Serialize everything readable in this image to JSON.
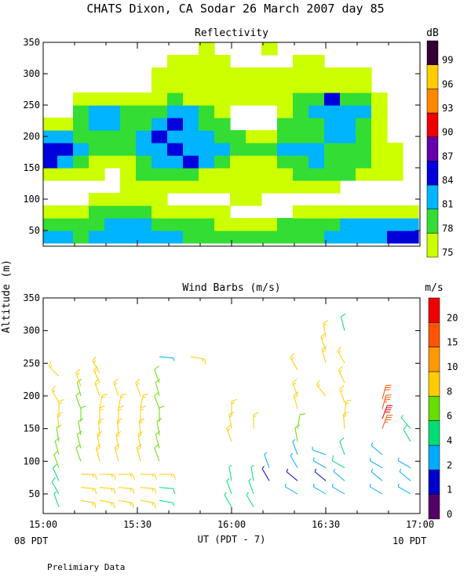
{
  "main_title": "CHATS Dixon, CA   Sodar   26 March 2007   day  85",
  "y_axis_label": "Altitude (m)",
  "x_axis_label": "UT  (PDT - 7)",
  "x_left_note": "08 PDT",
  "x_right_note": "10 PDT",
  "footer": "Prelimiary Data",
  "chart_data": [
    {
      "type": "heatmap",
      "title": "Reflectivity",
      "x_ticks": [
        "15:00",
        "15:30",
        "16:00",
        "16:30",
        "17:00"
      ],
      "y_ticks": [
        50,
        100,
        150,
        200,
        250,
        300,
        350
      ],
      "ylim": [
        25,
        350
      ],
      "colorbar": {
        "unit": "dB",
        "levels": [
          75,
          78,
          81,
          84,
          87,
          90,
          93,
          96,
          99
        ],
        "colors": [
          "#ccff00",
          "#33dd33",
          "#00b4ff",
          "#0000dd",
          "#6600aa",
          "#ee0000",
          "#ff8800",
          "#ffcc00",
          "#330033"
        ]
      },
      "x_grid_minutes": [
        2,
        7,
        12,
        17,
        22,
        27,
        32,
        37,
        42,
        47,
        52,
        57,
        62,
        67,
        72,
        77,
        82,
        87,
        92,
        97,
        102,
        107,
        112,
        117
      ],
      "altitudes_m": [
        40,
        60,
        80,
        100,
        120,
        140,
        160,
        180,
        200,
        220,
        240,
        260,
        280,
        300,
        320,
        340
      ],
      "grid_db": [
        [
          81,
          81,
          78,
          81,
          81,
          81,
          81,
          81,
          81,
          78,
          78,
          78,
          78,
          78,
          78,
          78,
          78,
          78,
          81,
          81,
          81,
          81,
          84,
          84
        ],
        [
          78,
          78,
          78,
          78,
          81,
          81,
          81,
          78,
          78,
          78,
          78,
          75,
          75,
          75,
          75,
          78,
          78,
          78,
          78,
          81,
          81,
          81,
          81,
          81
        ],
        [
          75,
          75,
          75,
          78,
          78,
          78,
          78,
          75,
          75,
          75,
          75,
          75,
          72,
          72,
          72,
          72,
          75,
          75,
          75,
          75,
          75,
          75,
          75,
          75
        ],
        [
          72,
          72,
          72,
          75,
          75,
          75,
          75,
          75,
          72,
          72,
          72,
          72,
          75,
          75,
          72,
          72,
          72,
          72,
          72,
          72,
          72,
          72,
          72,
          72
        ],
        [
          72,
          72,
          72,
          72,
          72,
          75,
          75,
          75,
          75,
          75,
          75,
          75,
          75,
          75,
          75,
          75,
          75,
          75,
          75,
          72,
          72,
          72,
          72,
          72
        ],
        [
          75,
          75,
          75,
          75,
          72,
          75,
          78,
          78,
          78,
          78,
          75,
          75,
          75,
          75,
          75,
          75,
          78,
          78,
          78,
          78,
          75,
          75,
          75,
          72
        ],
        [
          84,
          81,
          78,
          75,
          75,
          75,
          78,
          81,
          81,
          84,
          81,
          78,
          75,
          75,
          75,
          78,
          78,
          81,
          78,
          78,
          78,
          75,
          75,
          72
        ],
        [
          84,
          84,
          81,
          78,
          78,
          78,
          81,
          81,
          84,
          81,
          81,
          81,
          78,
          78,
          78,
          81,
          81,
          81,
          78,
          78,
          78,
          75,
          75,
          72
        ],
        [
          81,
          81,
          78,
          78,
          78,
          78,
          81,
          84,
          81,
          81,
          81,
          78,
          78,
          75,
          75,
          78,
          78,
          78,
          81,
          81,
          78,
          75,
          72,
          72
        ],
        [
          75,
          75,
          78,
          81,
          81,
          78,
          78,
          81,
          84,
          81,
          78,
          78,
          72,
          72,
          72,
          78,
          78,
          78,
          81,
          81,
          78,
          75,
          72,
          72
        ],
        [
          72,
          72,
          78,
          81,
          81,
          78,
          78,
          78,
          81,
          81,
          78,
          75,
          72,
          72,
          72,
          75,
          78,
          81,
          81,
          81,
          81,
          75,
          72,
          72
        ],
        [
          72,
          72,
          75,
          75,
          75,
          75,
          75,
          75,
          78,
          75,
          75,
          75,
          75,
          75,
          75,
          75,
          78,
          78,
          84,
          78,
          78,
          75,
          72,
          72
        ],
        [
          72,
          72,
          72,
          72,
          72,
          72,
          72,
          75,
          75,
          75,
          75,
          75,
          75,
          75,
          75,
          75,
          75,
          75,
          75,
          75,
          75,
          72,
          72,
          72
        ],
        [
          72,
          72,
          72,
          72,
          72,
          72,
          72,
          75,
          75,
          75,
          75,
          75,
          75,
          75,
          75,
          75,
          75,
          75,
          75,
          75,
          75,
          72,
          72,
          72
        ],
        [
          72,
          72,
          72,
          72,
          72,
          72,
          72,
          72,
          75,
          75,
          75,
          75,
          72,
          72,
          72,
          72,
          75,
          75,
          72,
          72,
          72,
          72,
          72,
          72
        ],
        [
          72,
          72,
          72,
          72,
          72,
          72,
          72,
          72,
          72,
          72,
          75,
          72,
          72,
          72,
          75,
          72,
          72,
          72,
          72,
          72,
          72,
          72,
          72,
          72
        ]
      ]
    },
    {
      "type": "scatter",
      "title": "Wind Barbs (m/s)",
      "x_ticks": [
        "15:00",
        "15:30",
        "16:00",
        "16:30",
        "17:00"
      ],
      "y_ticks": [
        50,
        100,
        150,
        200,
        250,
        300,
        350
      ],
      "ylim": [
        20,
        350
      ],
      "colorbar": {
        "unit": "m/s",
        "labels": [
          "0",
          "1",
          "2",
          "4",
          "6",
          "8",
          "10",
          "15",
          "20"
        ],
        "colors": [
          "#550066",
          "#0000cc",
          "#00aaff",
          "#00dd77",
          "#66dd00",
          "#ffcc00",
          "#ff9900",
          "#ff5500",
          "#ee0000"
        ]
      },
      "columns_minutes": [
        5,
        12,
        18,
        24,
        31,
        47,
        60,
        67,
        72,
        81,
        90,
        96,
        108,
        117
      ],
      "barbs": [
        {
          "t": 5,
          "z": 30,
          "dir": 340,
          "spd": 4.5
        },
        {
          "t": 5,
          "z": 50,
          "dir": 330,
          "spd": 5.5
        },
        {
          "t": 5,
          "z": 70,
          "dir": 335,
          "spd": 5.2
        },
        {
          "t": 5,
          "z": 90,
          "dir": 340,
          "spd": 6
        },
        {
          "t": 5,
          "z": 110,
          "dir": 345,
          "spd": 6.4
        },
        {
          "t": 5,
          "z": 130,
          "dir": 350,
          "spd": 6.6
        },
        {
          "t": 5,
          "z": 150,
          "dir": 355,
          "spd": 8.5
        },
        {
          "t": 5,
          "z": 170,
          "dir": 0,
          "spd": 9
        },
        {
          "t": 5,
          "z": 190,
          "dir": 330,
          "spd": 9
        },
        {
          "t": 5,
          "z": 230,
          "dir": 315,
          "spd": 9
        },
        {
          "t": 12,
          "z": 40,
          "dir": 100,
          "spd": 9
        },
        {
          "t": 12,
          "z": 60,
          "dir": 95,
          "spd": 9
        },
        {
          "t": 12,
          "z": 80,
          "dir": 90,
          "spd": 9
        },
        {
          "t": 12,
          "z": 100,
          "dir": 340,
          "spd": 6
        },
        {
          "t": 12,
          "z": 120,
          "dir": 345,
          "spd": 6
        },
        {
          "t": 12,
          "z": 140,
          "dir": 350,
          "spd": 6
        },
        {
          "t": 12,
          "z": 160,
          "dir": 0,
          "spd": 6
        },
        {
          "t": 12,
          "z": 180,
          "dir": 340,
          "spd": 6
        },
        {
          "t": 12,
          "z": 200,
          "dir": 345,
          "spd": 6
        },
        {
          "t": 12,
          "z": 215,
          "dir": 340,
          "spd": 8
        },
        {
          "t": 18,
          "z": 40,
          "dir": 100,
          "spd": 9
        },
        {
          "t": 18,
          "z": 60,
          "dir": 95,
          "spd": 9
        },
        {
          "t": 18,
          "z": 80,
          "dir": 90,
          "spd": 9
        },
        {
          "t": 18,
          "z": 100,
          "dir": 345,
          "spd": 9
        },
        {
          "t": 18,
          "z": 120,
          "dir": 350,
          "spd": 9
        },
        {
          "t": 18,
          "z": 140,
          "dir": 355,
          "spd": 9
        },
        {
          "t": 18,
          "z": 160,
          "dir": 0,
          "spd": 9
        },
        {
          "t": 18,
          "z": 180,
          "dir": 10,
          "spd": 9
        },
        {
          "t": 18,
          "z": 200,
          "dir": 340,
          "spd": 9
        },
        {
          "t": 18,
          "z": 220,
          "dir": 335,
          "spd": 9
        },
        {
          "t": 18,
          "z": 235,
          "dir": 330,
          "spd": 9
        },
        {
          "t": 24,
          "z": 40,
          "dir": 100,
          "spd": 9
        },
        {
          "t": 24,
          "z": 60,
          "dir": 95,
          "spd": 9
        },
        {
          "t": 24,
          "z": 80,
          "dir": 90,
          "spd": 9
        },
        {
          "t": 24,
          "z": 100,
          "dir": 345,
          "spd": 9
        },
        {
          "t": 24,
          "z": 120,
          "dir": 350,
          "spd": 9
        },
        {
          "t": 24,
          "z": 140,
          "dir": 355,
          "spd": 9
        },
        {
          "t": 24,
          "z": 160,
          "dir": 0,
          "spd": 9
        },
        {
          "t": 24,
          "z": 180,
          "dir": 10,
          "spd": 9
        },
        {
          "t": 24,
          "z": 200,
          "dir": 340,
          "spd": 9
        },
        {
          "t": 31,
          "z": 40,
          "dir": 100,
          "spd": 9
        },
        {
          "t": 31,
          "z": 60,
          "dir": 95,
          "spd": 9
        },
        {
          "t": 31,
          "z": 80,
          "dir": 90,
          "spd": 9
        },
        {
          "t": 31,
          "z": 100,
          "dir": 345,
          "spd": 9
        },
        {
          "t": 31,
          "z": 120,
          "dir": 350,
          "spd": 9
        },
        {
          "t": 31,
          "z": 140,
          "dir": 355,
          "spd": 9
        },
        {
          "t": 31,
          "z": 160,
          "dir": 0,
          "spd": 9
        },
        {
          "t": 31,
          "z": 180,
          "dir": 10,
          "spd": 9
        },
        {
          "t": 31,
          "z": 200,
          "dir": 340,
          "spd": 9
        },
        {
          "t": 37,
          "z": 40,
          "dir": 100,
          "spd": 4.5
        },
        {
          "t": 37,
          "z": 60,
          "dir": 95,
          "spd": 5
        },
        {
          "t": 37,
          "z": 80,
          "dir": 90,
          "spd": 9
        },
        {
          "t": 37,
          "z": 100,
          "dir": 340,
          "spd": 6
        },
        {
          "t": 37,
          "z": 120,
          "dir": 345,
          "spd": 6
        },
        {
          "t": 37,
          "z": 140,
          "dir": 350,
          "spd": 6
        },
        {
          "t": 37,
          "z": 160,
          "dir": 0,
          "spd": 6
        },
        {
          "t": 37,
          "z": 180,
          "dir": 340,
          "spd": 6
        },
        {
          "t": 37,
          "z": 200,
          "dir": 345,
          "spd": 6
        },
        {
          "t": 37,
          "z": 220,
          "dir": 340,
          "spd": 7
        },
        {
          "t": 37,
          "z": 260,
          "dir": 95,
          "spd": 3
        },
        {
          "t": 47,
          "z": 260,
          "dir": 100,
          "spd": 9
        },
        {
          "t": 60,
          "z": 30,
          "dir": 330,
          "spd": 4.5
        },
        {
          "t": 60,
          "z": 50,
          "dir": 340,
          "spd": 4.5
        },
        {
          "t": 60,
          "z": 70,
          "dir": 350,
          "spd": 4.5
        },
        {
          "t": 60,
          "z": 130,
          "dir": 340,
          "spd": 9
        },
        {
          "t": 60,
          "z": 150,
          "dir": 350,
          "spd": 9
        },
        {
          "t": 60,
          "z": 170,
          "dir": 0,
          "spd": 9
        },
        {
          "t": 67,
          "z": 30,
          "dir": 330,
          "spd": 4.5
        },
        {
          "t": 67,
          "z": 50,
          "dir": 340,
          "spd": 4.5
        },
        {
          "t": 67,
          "z": 70,
          "dir": 350,
          "spd": 4.5
        },
        {
          "t": 67,
          "z": 150,
          "dir": 0,
          "spd": 9
        },
        {
          "t": 72,
          "z": 90,
          "dir": 340,
          "spd": 3.5
        },
        {
          "t": 72,
          "z": 70,
          "dir": 330,
          "spd": 1.5
        },
        {
          "t": 81,
          "z": 50,
          "dir": 300,
          "spd": 3.5
        },
        {
          "t": 81,
          "z": 70,
          "dir": 310,
          "spd": 1
        },
        {
          "t": 81,
          "z": 90,
          "dir": 330,
          "spd": 3
        },
        {
          "t": 81,
          "z": 110,
          "dir": 340,
          "spd": 3
        },
        {
          "t": 81,
          "z": 130,
          "dir": 350,
          "spd": 6
        },
        {
          "t": 81,
          "z": 150,
          "dir": 10,
          "spd": 7
        },
        {
          "t": 81,
          "z": 180,
          "dir": 345,
          "spd": 9
        },
        {
          "t": 81,
          "z": 200,
          "dir": 340,
          "spd": 9
        },
        {
          "t": 81,
          "z": 240,
          "dir": 330,
          "spd": 9
        },
        {
          "t": 90,
          "z": 50,
          "dir": 300,
          "spd": 2.5
        },
        {
          "t": 90,
          "z": 70,
          "dir": 310,
          "spd": 1
        },
        {
          "t": 90,
          "z": 90,
          "dir": 300,
          "spd": 2
        },
        {
          "t": 90,
          "z": 110,
          "dir": 290,
          "spd": 2
        },
        {
          "t": 90,
          "z": 200,
          "dir": 320,
          "spd": 9
        },
        {
          "t": 90,
          "z": 250,
          "dir": 345,
          "spd": 9
        },
        {
          "t": 90,
          "z": 270,
          "dir": 340,
          "spd": 9
        },
        {
          "t": 90,
          "z": 290,
          "dir": 350,
          "spd": 9
        },
        {
          "t": 96,
          "z": 50,
          "dir": 300,
          "spd": 2.5
        },
        {
          "t": 96,
          "z": 70,
          "dir": 310,
          "spd": 2
        },
        {
          "t": 96,
          "z": 90,
          "dir": 300,
          "spd": 5
        },
        {
          "t": 96,
          "z": 110,
          "dir": 340,
          "spd": 5
        },
        {
          "t": 96,
          "z": 150,
          "dir": 355,
          "spd": 9
        },
        {
          "t": 96,
          "z": 170,
          "dir": 5,
          "spd": 9
        },
        {
          "t": 96,
          "z": 190,
          "dir": 340,
          "spd": 9
        },
        {
          "t": 96,
          "z": 220,
          "dir": 335,
          "spd": 9
        },
        {
          "t": 96,
          "z": 250,
          "dir": 330,
          "spd": 9
        },
        {
          "t": 96,
          "z": 300,
          "dir": 345,
          "spd": 5
        },
        {
          "t": 108,
          "z": 50,
          "dir": 300,
          "spd": 3.5
        },
        {
          "t": 108,
          "z": 70,
          "dir": 310,
          "spd": 2
        },
        {
          "t": 108,
          "z": 90,
          "dir": 300,
          "spd": 3
        },
        {
          "t": 108,
          "z": 110,
          "dir": 310,
          "spd": 2
        },
        {
          "t": 108,
          "z": 150,
          "dir": 20,
          "spd": 19
        },
        {
          "t": 108,
          "z": 165,
          "dir": 20,
          "spd": 20
        },
        {
          "t": 108,
          "z": 180,
          "dir": 15,
          "spd": 19
        },
        {
          "t": 108,
          "z": 195,
          "dir": 15,
          "spd": 17
        },
        {
          "t": 117,
          "z": 50,
          "dir": 300,
          "spd": 2.5
        },
        {
          "t": 117,
          "z": 70,
          "dir": 310,
          "spd": 2
        },
        {
          "t": 117,
          "z": 90,
          "dir": 300,
          "spd": 3
        },
        {
          "t": 117,
          "z": 130,
          "dir": 330,
          "spd": 5
        },
        {
          "t": 117,
          "z": 150,
          "dir": 320,
          "spd": 4
        }
      ]
    }
  ]
}
